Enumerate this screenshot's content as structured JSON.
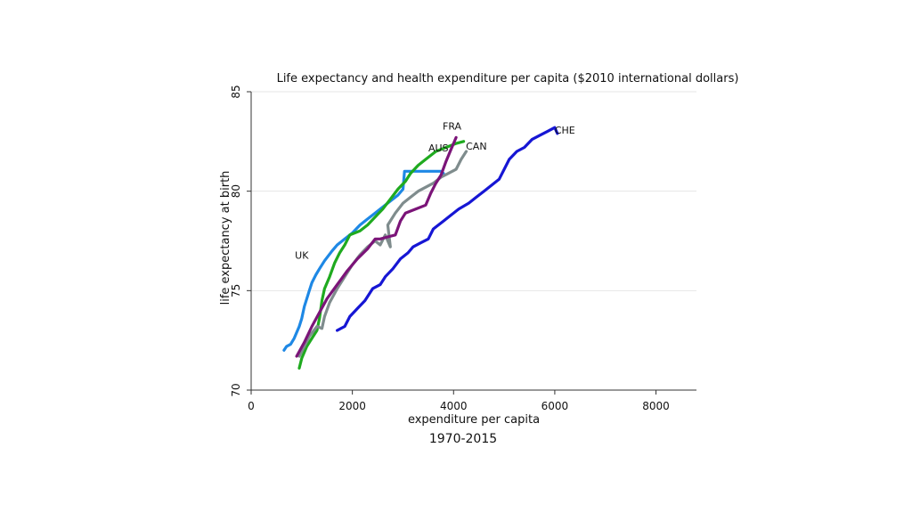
{
  "chart_data": {
    "type": "line",
    "title": "Life expectancy and health expenditure per capita ($2010 international dollars)",
    "xlabel": "expenditure per capita",
    "ylabel": "life expectancy at birth",
    "xlim": [
      0,
      8800
    ],
    "ylim": [
      70,
      85
    ],
    "xticks": [
      0,
      2000,
      4000,
      6000,
      8000
    ],
    "yticks": [
      70,
      75,
      80,
      85
    ],
    "grid": true,
    "caption": "1970-2015",
    "series": [
      {
        "name": "UK",
        "color": "#1e88e5",
        "points": [
          [
            650,
            72.0
          ],
          [
            700,
            72.2
          ],
          [
            780,
            72.3
          ],
          [
            850,
            72.6
          ],
          [
            950,
            73.2
          ],
          [
            1000,
            73.6
          ],
          [
            1050,
            74.2
          ],
          [
            1100,
            74.6
          ],
          [
            1150,
            75.0
          ],
          [
            1200,
            75.4
          ],
          [
            1280,
            75.8
          ],
          [
            1350,
            76.1
          ],
          [
            1450,
            76.5
          ],
          [
            1600,
            77.0
          ],
          [
            1700,
            77.3
          ],
          [
            1850,
            77.6
          ],
          [
            2000,
            77.9
          ],
          [
            2150,
            78.3
          ],
          [
            2300,
            78.6
          ],
          [
            2450,
            78.9
          ],
          [
            2600,
            79.2
          ],
          [
            2750,
            79.5
          ],
          [
            2900,
            79.8
          ],
          [
            3000,
            80.1
          ],
          [
            3030,
            81.0
          ],
          [
            3250,
            81.0
          ],
          [
            3500,
            81.0
          ],
          [
            3750,
            81.0
          ],
          [
            3800,
            80.9
          ]
        ]
      },
      {
        "name": "AUS",
        "color": "#1faa1f",
        "points": [
          [
            950,
            71.1
          ],
          [
            1000,
            71.6
          ],
          [
            1100,
            72.2
          ],
          [
            1200,
            72.6
          ],
          [
            1300,
            73.0
          ],
          [
            1350,
            73.6
          ],
          [
            1400,
            74.5
          ],
          [
            1450,
            75.1
          ],
          [
            1550,
            75.7
          ],
          [
            1650,
            76.4
          ],
          [
            1750,
            76.9
          ],
          [
            1850,
            77.3
          ],
          [
            1950,
            77.8
          ],
          [
            2150,
            78.0
          ],
          [
            2300,
            78.3
          ],
          [
            2450,
            78.7
          ],
          [
            2600,
            79.1
          ],
          [
            2750,
            79.6
          ],
          [
            2900,
            80.1
          ],
          [
            3050,
            80.5
          ],
          [
            3150,
            80.9
          ],
          [
            3300,
            81.3
          ],
          [
            3450,
            81.6
          ],
          [
            3650,
            82.0
          ],
          [
            3850,
            82.2
          ],
          [
            4050,
            82.4
          ],
          [
            4200,
            82.5
          ]
        ]
      },
      {
        "name": "CAN",
        "color": "#7f8c8d",
        "points": [
          [
            950,
            71.7
          ],
          [
            1050,
            72.2
          ],
          [
            1150,
            72.7
          ],
          [
            1300,
            73.2
          ],
          [
            1400,
            73.1
          ],
          [
            1450,
            73.7
          ],
          [
            1550,
            74.4
          ],
          [
            1700,
            75.1
          ],
          [
            1850,
            75.7
          ],
          [
            2000,
            76.3
          ],
          [
            2150,
            76.8
          ],
          [
            2300,
            77.2
          ],
          [
            2450,
            77.5
          ],
          [
            2550,
            77.3
          ],
          [
            2650,
            77.8
          ],
          [
            2750,
            77.2
          ],
          [
            2700,
            78.3
          ],
          [
            2850,
            78.9
          ],
          [
            3000,
            79.4
          ],
          [
            3150,
            79.7
          ],
          [
            3300,
            80.0
          ],
          [
            3450,
            80.2
          ],
          [
            3600,
            80.4
          ],
          [
            3750,
            80.7
          ],
          [
            3900,
            80.9
          ],
          [
            4050,
            81.1
          ],
          [
            4150,
            81.6
          ],
          [
            4250,
            82.0
          ]
        ]
      },
      {
        "name": "FRA",
        "color": "#7b1478",
        "points": [
          [
            900,
            71.7
          ],
          [
            1050,
            72.4
          ],
          [
            1200,
            73.2
          ],
          [
            1350,
            73.9
          ],
          [
            1500,
            74.6
          ],
          [
            1700,
            75.3
          ],
          [
            1900,
            76.0
          ],
          [
            2100,
            76.6
          ],
          [
            2300,
            77.1
          ],
          [
            2450,
            77.6
          ],
          [
            2550,
            77.6
          ],
          [
            2700,
            77.7
          ],
          [
            2850,
            77.8
          ],
          [
            2950,
            78.5
          ],
          [
            3050,
            78.9
          ],
          [
            3250,
            79.1
          ],
          [
            3450,
            79.3
          ],
          [
            3550,
            79.9
          ],
          [
            3650,
            80.4
          ],
          [
            3750,
            80.8
          ],
          [
            3850,
            81.5
          ],
          [
            3950,
            82.1
          ],
          [
            4050,
            82.7
          ]
        ]
      },
      {
        "name": "CHE",
        "color": "#1616d4",
        "points": [
          [
            1700,
            73.0
          ],
          [
            1850,
            73.2
          ],
          [
            1950,
            73.7
          ],
          [
            2100,
            74.1
          ],
          [
            2250,
            74.5
          ],
          [
            2400,
            75.1
          ],
          [
            2550,
            75.3
          ],
          [
            2650,
            75.7
          ],
          [
            2800,
            76.1
          ],
          [
            2950,
            76.6
          ],
          [
            3100,
            76.9
          ],
          [
            3200,
            77.2
          ],
          [
            3350,
            77.4
          ],
          [
            3500,
            77.6
          ],
          [
            3600,
            78.1
          ],
          [
            3800,
            78.5
          ],
          [
            3950,
            78.8
          ],
          [
            4100,
            79.1
          ],
          [
            4300,
            79.4
          ],
          [
            4450,
            79.7
          ],
          [
            4600,
            80.0
          ],
          [
            4750,
            80.3
          ],
          [
            4900,
            80.6
          ],
          [
            5000,
            81.1
          ],
          [
            5100,
            81.6
          ],
          [
            5250,
            82.0
          ],
          [
            5400,
            82.2
          ],
          [
            5550,
            82.6
          ],
          [
            5700,
            82.8
          ],
          [
            5850,
            83.0
          ],
          [
            6000,
            83.2
          ],
          [
            6050,
            82.9
          ]
        ]
      }
    ]
  }
}
